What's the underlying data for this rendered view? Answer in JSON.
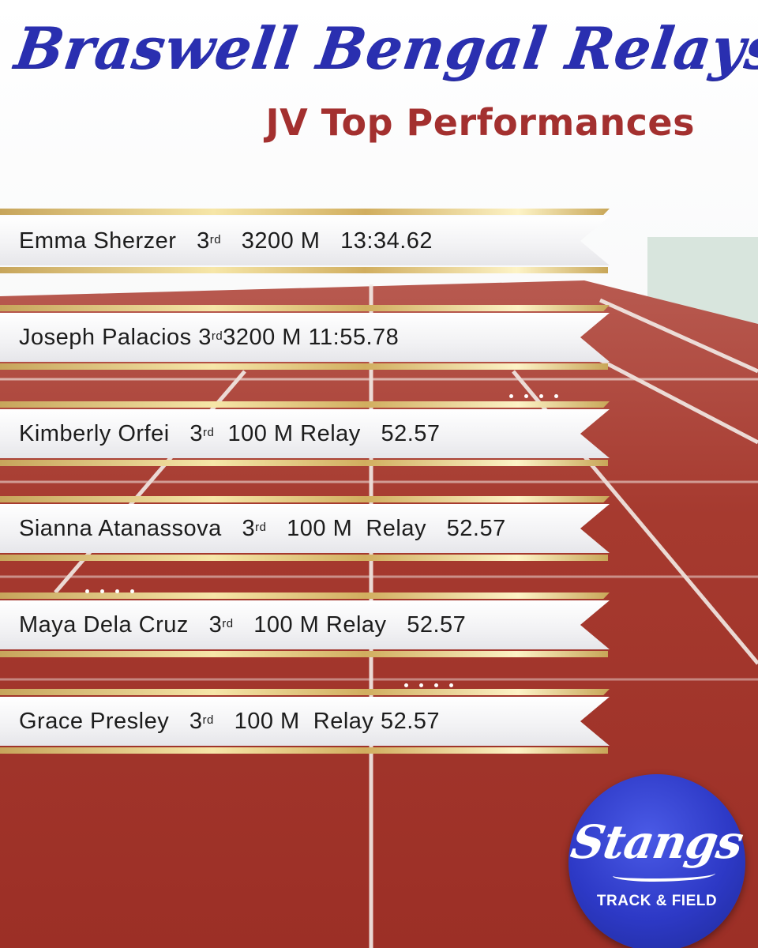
{
  "header": {
    "title": "Braswell Bengal Relays",
    "subtitle": "JV Top Performances"
  },
  "colors": {
    "title": "#2a2fb0",
    "subtitle": "#a3302f",
    "track": "#a8392e",
    "gold": "#d8b86a",
    "logo": "#2d39c6"
  },
  "performances": [
    {
      "name": "Emma Sherzer",
      "place": "3",
      "place_suffix": "rd",
      "event": "3200 M",
      "mark": "13:34.62"
    },
    {
      "name": "Joseph Palacios",
      "place": "3",
      "place_suffix": "rd",
      "event": "3200 M",
      "mark": "11:55.78"
    },
    {
      "name": "Kimberly Orfei",
      "place": "3",
      "place_suffix": "rd",
      "event": "100 M Relay",
      "mark": "52.57"
    },
    {
      "name": "Sianna Atanassova",
      "place": "3",
      "place_suffix": "rd",
      "event": "100 M  Relay",
      "mark": "52.57"
    },
    {
      "name": "Maya Dela Cruz",
      "place": "3",
      "place_suffix": "rd",
      "event": "100 M Relay",
      "mark": "52.57"
    },
    {
      "name": "Grace Presley",
      "place": "3",
      "place_suffix": "rd",
      "event": "100 M  Relay",
      "mark": "52.57"
    }
  ],
  "logo": {
    "wordmark": "Stangs",
    "subtitle": "TRACK & FIELD"
  }
}
